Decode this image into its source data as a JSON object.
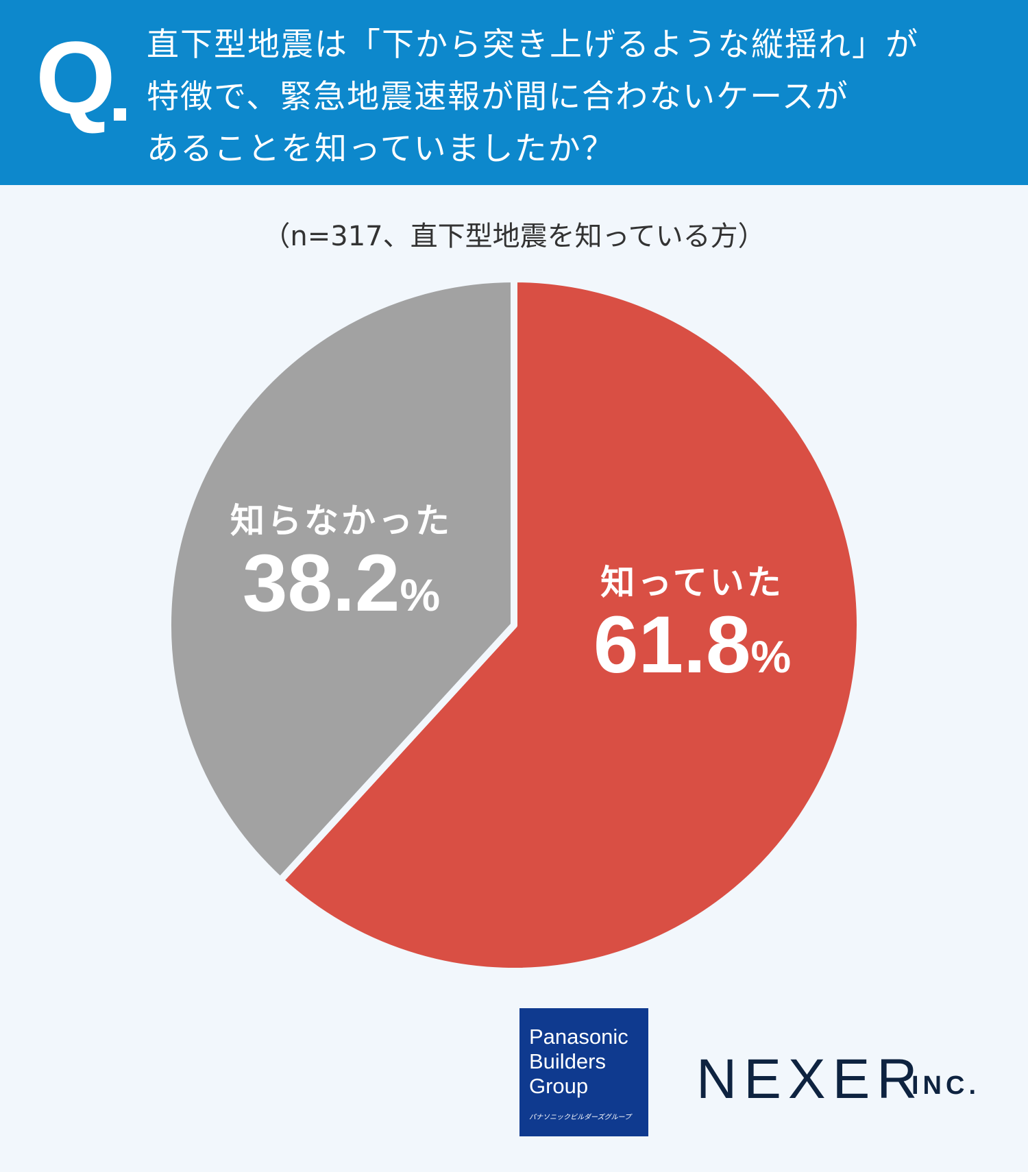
{
  "header": {
    "q_mark": "Q",
    "title_lines": [
      "直下型地震は「下から突き上げるような縦揺れ」が",
      "特徴で、緊急地震速報が間に合わないケースが",
      "あることを知っていましたか？"
    ]
  },
  "subtitle": "（n=317、直下型地震を知っている方）",
  "chart_data": {
    "type": "pie",
    "title": "直下型地震は「下から突き上げるような縦揺れ」が特徴で、緊急地震速報が間に合わないケースがあることを知っていましたか？",
    "subtitle": "（n=317、直下型地震を知っている方）",
    "slices": [
      {
        "label": "知っていた",
        "value": 61.8,
        "display": "61.8",
        "color": "#d94f44"
      },
      {
        "label": "知らなかった",
        "value": 38.2,
        "display": "38.2",
        "color": "#a2a2a2"
      }
    ],
    "unit": "%",
    "start_angle": "12 o'clock",
    "direction": "clockwise"
  },
  "logos": {
    "panasonic": [
      "Panasonic",
      "Builders",
      "Group"
    ],
    "panasonic_kana": "パナソニックビルダーズグループ",
    "nexer": "NEXER",
    "nexer_suffix": "INC."
  }
}
